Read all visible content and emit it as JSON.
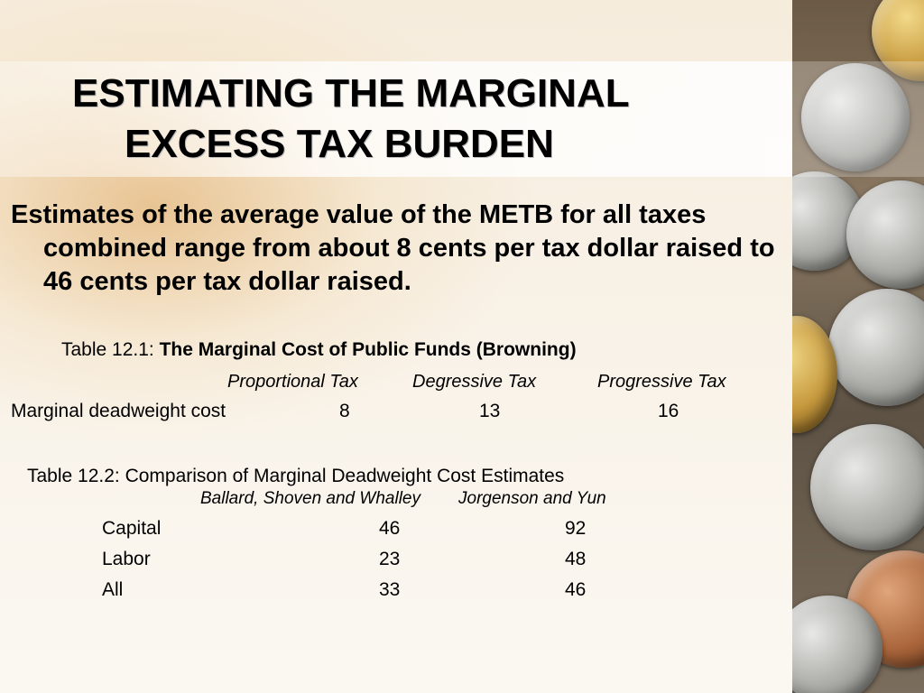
{
  "slide": {
    "title_line1": "ESTIMATING THE MARGINAL",
    "title_line2": "EXCESS TAX BURDEN",
    "body": "Estimates of the average value of the METB for all taxes combined range from about 8 cents per tax dollar raised to 46 cents per tax dollar raised."
  },
  "table1": {
    "caption_prefix": "Table 12.1: ",
    "caption_title": "The Marginal Cost of Public Funds (Browning)",
    "columns": [
      "Proportional Tax",
      "Degressive Tax",
      "Progressive Tax"
    ],
    "row_label": "Marginal deadweight cost",
    "values": [
      "8",
      "13",
      "16"
    ]
  },
  "table2": {
    "caption": "Table 12.2: Comparison of Marginal Deadweight Cost Estimates",
    "columns": [
      "Ballard, Shoven and Whalley",
      "Jorgenson and Yun"
    ],
    "rows": [
      {
        "label": "Capital",
        "values": [
          "46",
          "92"
        ]
      },
      {
        "label": "Labor",
        "values": [
          "23",
          "48"
        ]
      },
      {
        "label": "All",
        "values": [
          "33",
          "46"
        ]
      }
    ]
  },
  "decor": {
    "background_image": "coins-photo-icon"
  }
}
